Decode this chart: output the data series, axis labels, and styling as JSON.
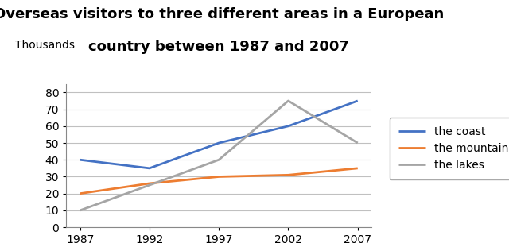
{
  "title_line1": "Overseas visitors to three different areas in a European",
  "title_line2": "country between 1987 and 2007",
  "ylabel": "Thousands",
  "years": [
    1987,
    1992,
    1997,
    2002,
    2007
  ],
  "series": [
    {
      "label": "the coast",
      "values": [
        40,
        35,
        50,
        60,
        75
      ],
      "color": "#4472C4",
      "linewidth": 2.0
    },
    {
      "label": "the mountains",
      "values": [
        20,
        26,
        30,
        31,
        35
      ],
      "color": "#ED7D31",
      "linewidth": 2.0
    },
    {
      "label": "the lakes",
      "values": [
        10,
        25,
        40,
        75,
        50
      ],
      "color": "#A5A5A5",
      "linewidth": 2.0
    }
  ],
  "ylim": [
    0,
    85
  ],
  "yticks": [
    0,
    10,
    20,
    30,
    40,
    50,
    60,
    70,
    80
  ],
  "xticks": [
    1987,
    1992,
    1997,
    2002,
    2007
  ],
  "background_color": "#FFFFFF",
  "grid_color": "#C0C0C0",
  "title_fontsize": 13,
  "legend_fontsize": 10,
  "tick_fontsize": 10,
  "ylabel_fontsize": 10
}
